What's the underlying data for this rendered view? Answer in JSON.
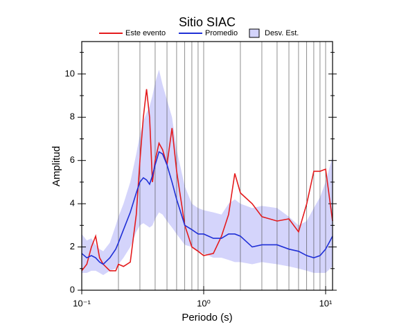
{
  "chart_data": {
    "type": "line",
    "title": "Sitio SIAC",
    "xlabel": "Periodo (s)",
    "ylabel": "Amplitud",
    "xlog": true,
    "xlim": [
      0.1,
      11.4
    ],
    "ylim": [
      0,
      11.5
    ],
    "xticks": [
      {
        "value": 0.1,
        "label": "10⁻¹"
      },
      {
        "value": 1,
        "label": "10⁰"
      },
      {
        "value": 10,
        "label": "10¹"
      }
    ],
    "xgrid": [
      0.2,
      0.3,
      0.4,
      0.5,
      0.6,
      0.7,
      0.8,
      0.9,
      1,
      2,
      3,
      4,
      5,
      6,
      7,
      8,
      9,
      10
    ],
    "yticks": [
      0,
      2,
      4,
      6,
      8,
      10
    ],
    "yminor": [
      1,
      3,
      5,
      7,
      9,
      11
    ],
    "x": [
      0.1,
      0.11,
      0.12,
      0.13,
      0.14,
      0.15,
      0.17,
      0.19,
      0.2,
      0.22,
      0.25,
      0.28,
      0.3,
      0.32,
      0.34,
      0.36,
      0.38,
      0.4,
      0.43,
      0.46,
      0.5,
      0.55,
      0.6,
      0.7,
      0.8,
      0.9,
      1.0,
      1.2,
      1.4,
      1.6,
      1.8,
      2.0,
      2.5,
      3,
      4,
      5,
      6,
      7,
      8,
      9,
      10,
      11.4
    ],
    "series": [
      {
        "name": "Este evento",
        "color": "#e41a1c",
        "values": [
          0.9,
          1.2,
          2.0,
          2.5,
          1.5,
          1.2,
          0.9,
          0.9,
          1.2,
          1.1,
          1.3,
          3.5,
          6.0,
          8.0,
          9.3,
          8.0,
          5.0,
          6.0,
          6.8,
          6.5,
          5.8,
          7.5,
          5.5,
          3.0,
          2.0,
          1.8,
          1.6,
          1.7,
          2.5,
          3.5,
          5.4,
          4.5,
          4.0,
          3.4,
          3.2,
          3.3,
          2.7,
          4.0,
          5.5,
          5.5,
          5.6,
          3.2
        ]
      },
      {
        "name": "Promedio",
        "color": "#1f2fd6",
        "values": [
          1.7,
          1.5,
          1.6,
          1.5,
          1.3,
          1.2,
          1.5,
          1.9,
          2.2,
          2.8,
          3.6,
          4.5,
          5.0,
          5.2,
          5.1,
          4.9,
          5.3,
          5.8,
          6.4,
          6.3,
          5.8,
          5.0,
          4.2,
          3.0,
          2.8,
          2.6,
          2.6,
          2.4,
          2.4,
          2.6,
          2.6,
          2.5,
          2.0,
          2.1,
          2.1,
          1.9,
          1.8,
          1.6,
          1.5,
          1.6,
          1.9,
          2.5
        ]
      },
      {
        "name": "Desv. Est.",
        "color": "#d4d4fb",
        "upper": [
          2.6,
          2.3,
          2.4,
          2.1,
          1.9,
          1.8,
          2.2,
          3.0,
          3.4,
          4.0,
          5.0,
          6.3,
          7.2,
          7.8,
          8.2,
          8.5,
          9.0,
          9.6,
          10.2,
          9.5,
          8.8,
          8.0,
          6.5,
          4.8,
          4.0,
          3.8,
          3.7,
          3.6,
          3.5,
          4.0,
          4.2,
          4.0,
          3.8,
          3.9,
          3.8,
          3.4,
          3.0,
          3.2,
          3.8,
          4.3,
          5.0,
          6.2
        ],
        "lower": [
          0.8,
          0.8,
          0.9,
          0.9,
          0.8,
          0.7,
          0.9,
          1.0,
          1.2,
          1.5,
          2.0,
          2.7,
          3.0,
          3.1,
          3.0,
          2.9,
          3.0,
          3.3,
          3.6,
          3.5,
          3.2,
          2.9,
          2.6,
          2.1,
          2.0,
          1.8,
          1.7,
          1.5,
          1.5,
          1.4,
          1.3,
          1.3,
          1.2,
          1.3,
          1.2,
          1.1,
          1.0,
          0.9,
          0.8,
          0.8,
          0.8,
          1.1
        ]
      }
    ]
  }
}
